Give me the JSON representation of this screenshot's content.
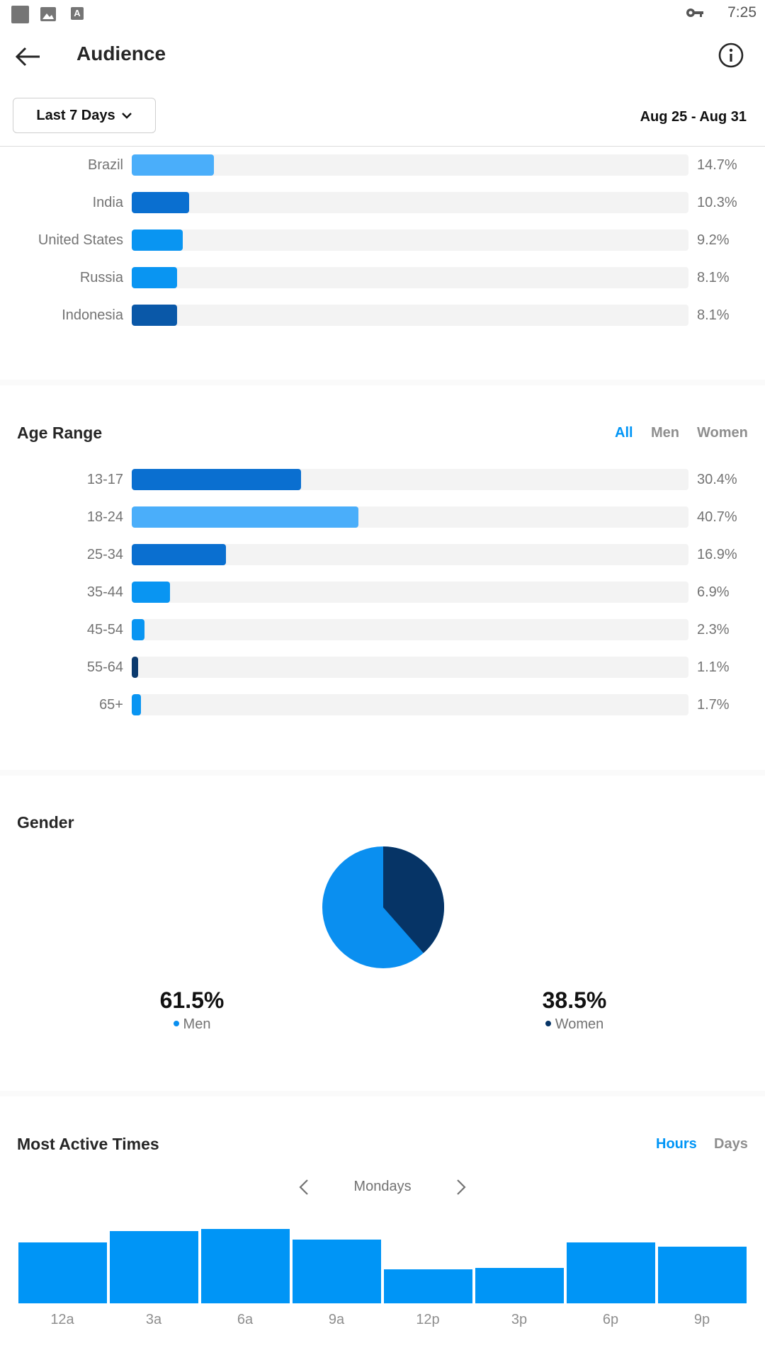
{
  "status_bar": {
    "time": "7:25"
  },
  "header": {
    "title": "Audience"
  },
  "filter": {
    "range_label": "Last 7 Days",
    "date_range": "Aug 25 - Aug 31"
  },
  "locations": [
    {
      "label": "Brazil",
      "pct": 14.7,
      "value": "14.7%",
      "color": "#4aaefa"
    },
    {
      "label": "India",
      "pct": 10.3,
      "value": "10.3%",
      "color": "#0a6fd0"
    },
    {
      "label": "United States",
      "pct": 9.2,
      "value": "9.2%",
      "color": "#0995f2"
    },
    {
      "label": "Russia",
      "pct": 8.1,
      "value": "8.1%",
      "color": "#0995f2"
    },
    {
      "label": "Indonesia",
      "pct": 8.1,
      "value": "8.1%",
      "color": "#0a58a8"
    }
  ],
  "age_range": {
    "title": "Age Range",
    "toggles": [
      "All",
      "Men",
      "Women"
    ],
    "active_toggle": "All",
    "rows": [
      {
        "label": "13-17",
        "pct": 30.4,
        "value": "30.4%",
        "color": "#0a6fd0"
      },
      {
        "label": "18-24",
        "pct": 40.7,
        "value": "40.7%",
        "color": "#4aaefa"
      },
      {
        "label": "25-34",
        "pct": 16.9,
        "value": "16.9%",
        "color": "#0a6fd0"
      },
      {
        "label": "35-44",
        "pct": 6.9,
        "value": "6.9%",
        "color": "#0995f2"
      },
      {
        "label": "45-54",
        "pct": 2.3,
        "value": "2.3%",
        "color": "#0995f2"
      },
      {
        "label": "55-64",
        "pct": 1.1,
        "value": "1.1%",
        "color": "#0b3a6e"
      },
      {
        "label": "65+",
        "pct": 1.7,
        "value": "1.7%",
        "color": "#0995f2"
      }
    ]
  },
  "gender": {
    "title": "Gender",
    "men": {
      "value": "61.5%",
      "label": "Men",
      "pct": 61.5,
      "color": "#0a8ff0"
    },
    "women": {
      "value": "38.5%",
      "label": "Women",
      "pct": 38.5,
      "color": "#063466"
    }
  },
  "active_times": {
    "title": "Most Active Times",
    "toggles": [
      "Hours",
      "Days"
    ],
    "active_toggle": "Hours",
    "day": "Mondays",
    "labels": [
      "12a",
      "3a",
      "6a",
      "9a",
      "12p",
      "3p",
      "6p",
      "9p"
    ],
    "values": [
      88,
      104,
      107,
      92,
      49,
      51,
      88,
      82
    ]
  }
}
